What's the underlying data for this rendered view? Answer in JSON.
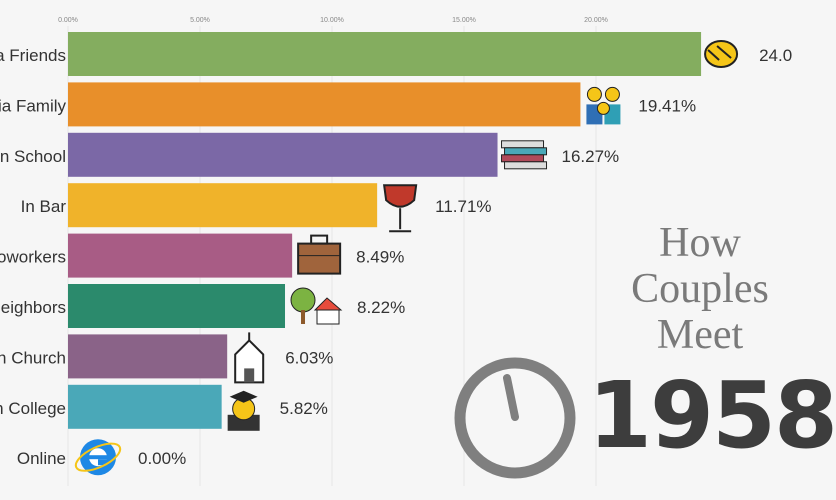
{
  "chart_data": {
    "type": "bar",
    "orientation": "horizontal",
    "title": "How Couples Meet",
    "title_lines": [
      "How",
      "Couples",
      "Meet"
    ],
    "year": "1958",
    "xlim": [
      0,
      26
    ],
    "x_ticks": [
      0,
      5,
      10,
      15,
      20
    ],
    "x_tick_labels": [
      "0.00%",
      "5.00%",
      "10.00%",
      "15.00%",
      "20.00%"
    ],
    "grid": true,
    "categories": [
      "a Friends",
      "ia Family",
      "n School",
      "In Bar",
      "oworkers",
      "eighbors",
      "n Church",
      "n College",
      "Online"
    ],
    "values": [
      23.98,
      19.41,
      16.27,
      11.71,
      8.49,
      8.22,
      6.03,
      5.82,
      0.0
    ],
    "value_labels": [
      "24.0",
      "19.41%",
      "16.27%",
      "11.71%",
      "8.49%",
      "8.22%",
      "6.03%",
      "5.82%",
      "0.00%"
    ],
    "icons": [
      "handshake-icon",
      "family-icon",
      "books-icon",
      "wine-glass-icon",
      "briefcase-icon",
      "house-tree-icon",
      "church-icon",
      "graduate-icon",
      "internet-explorer-icon"
    ],
    "colors": [
      "#84ad5f",
      "#e88f2a",
      "#7b68a6",
      "#f0b32a",
      "#a85c85",
      "#2b8a6c",
      "#8a6388",
      "#4aa8b8",
      "#4aa8b8"
    ]
  },
  "clock": {
    "color": "#7f7f7f"
  }
}
